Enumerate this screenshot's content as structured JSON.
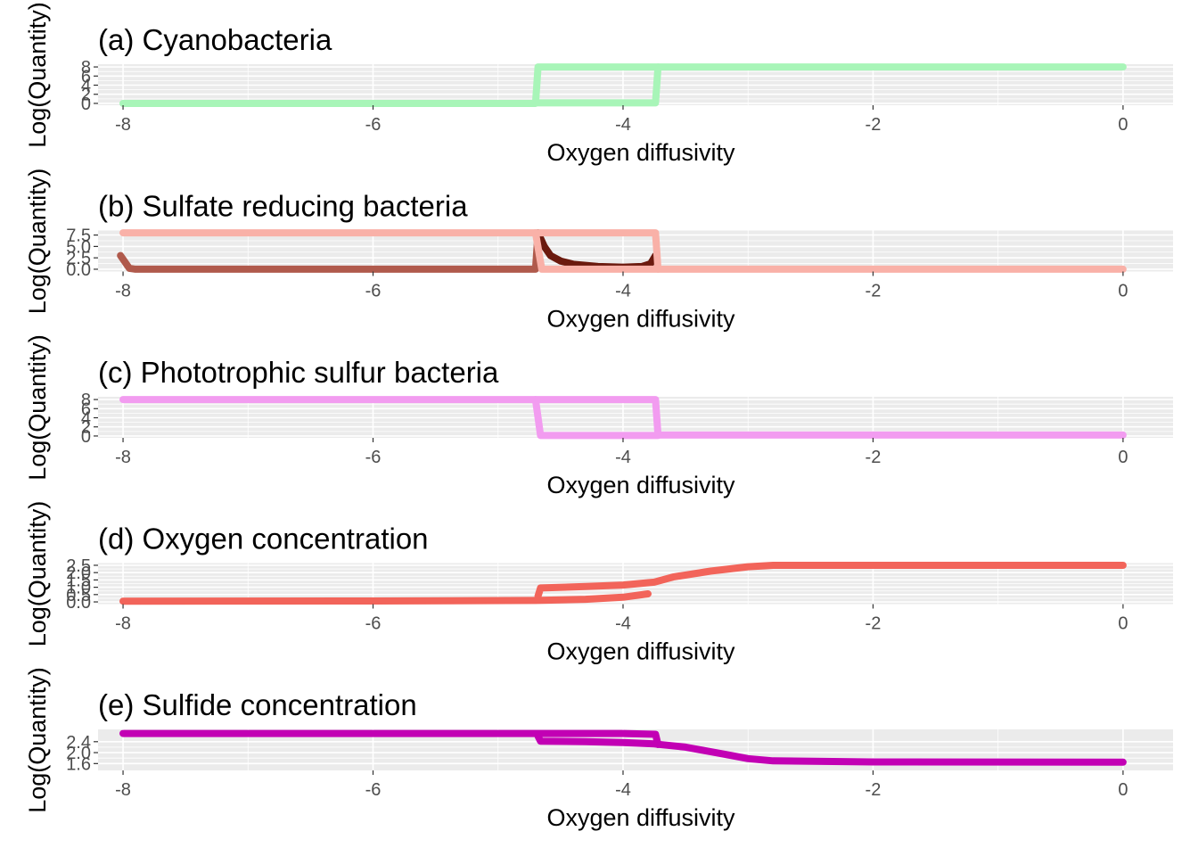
{
  "chart_data": [
    {
      "type": "line",
      "title": "(a) Cyanobacteria",
      "xlabel": "Oxygen diffusivity",
      "ylabel": "Log(Quantity)",
      "xlim": [
        -8.2,
        0.4
      ],
      "ylim": [
        -0.4,
        8.6
      ],
      "xticks": [
        -8,
        -6,
        -4,
        -2,
        0
      ],
      "xtick_labels": [
        "-8",
        "-6",
        "-4",
        "-2",
        "0"
      ],
      "yticks": [
        0,
        2,
        4,
        6,
        8
      ],
      "ytick_labels": [
        "0",
        "2",
        "4",
        "6",
        "8"
      ],
      "grid": true,
      "series": [
        {
          "color": "#a8f5b8",
          "x": [
            -8,
            -4.7,
            -4.68,
            -3.74,
            -3.72,
            0
          ],
          "y": [
            0,
            0,
            8,
            8,
            8,
            8
          ]
        },
        {
          "color": "#a8f5b8",
          "x": [
            -4.68,
            -3.74,
            -3.72
          ],
          "y": [
            0.1,
            0.1,
            8
          ]
        }
      ]
    },
    {
      "type": "line",
      "title": "(b) Sulfate reducing bacteria",
      "xlabel": "Oxygen diffusivity",
      "ylabel": "Log(Quantity)",
      "xlim": [
        -8.2,
        0.4
      ],
      "ylim": [
        -0.5,
        8.5
      ],
      "xticks": [
        -8,
        -6,
        -4,
        -2,
        0
      ],
      "xtick_labels": [
        "-8",
        "-6",
        "-4",
        "-2",
        "0"
      ],
      "yticks": [
        0,
        2.5,
        5,
        7.5
      ],
      "ytick_labels": [
        "0.0",
        "2.5",
        "5.0",
        "7.5"
      ],
      "grid": true,
      "series": [
        {
          "color": "#b05a4c",
          "x": [
            -8.02,
            -7.95,
            -7.9,
            -4.7,
            -4.68
          ],
          "y": [
            3,
            0.2,
            0,
            0,
            8
          ]
        },
        {
          "color": "#6b1a0e",
          "x": [
            -4.68,
            -4.63,
            -4.58,
            -4.5,
            -4.4,
            -4.2,
            -4.0,
            -3.85,
            -3.78,
            -3.74
          ],
          "y": [
            8,
            5,
            3,
            1.8,
            1.1,
            0.6,
            0.45,
            0.6,
            1.2,
            3
          ]
        },
        {
          "color": "#f9b1a8",
          "x": [
            -8,
            -4.7,
            -4.68,
            -3.74,
            -3.72,
            0
          ],
          "y": [
            8,
            8,
            8,
            8,
            0,
            0
          ]
        },
        {
          "color": "#f9b1a8",
          "x": [
            -4.7,
            -4.65,
            -3.72
          ],
          "y": [
            8,
            0,
            0
          ]
        }
      ]
    },
    {
      "type": "line",
      "title": "(c) Phototrophic sulfur bacteria",
      "xlabel": "Oxygen diffusivity",
      "ylabel": "Log(Quantity)",
      "xlim": [
        -8.2,
        0.4
      ],
      "ylim": [
        -0.4,
        8.6
      ],
      "xticks": [
        -8,
        -6,
        -4,
        -2,
        0
      ],
      "xtick_labels": [
        "-8",
        "-6",
        "-4",
        "-2",
        "0"
      ],
      "yticks": [
        0,
        2,
        4,
        6,
        8
      ],
      "ytick_labels": [
        "0",
        "2",
        "4",
        "6",
        "8"
      ],
      "grid": true,
      "series": [
        {
          "color": "#f29cf0",
          "x": [
            -8,
            -4.7,
            -4.68,
            -3.74,
            -3.72,
            0
          ],
          "y": [
            8,
            8,
            8,
            8,
            0.2,
            0.2
          ]
        },
        {
          "color": "#f29cf0",
          "x": [
            -4.7,
            -4.66,
            -3.72
          ],
          "y": [
            8,
            0.1,
            0.1
          ]
        }
      ]
    },
    {
      "type": "line",
      "title": "(d) Oxygen concentration",
      "xlabel": "Oxygen diffusivity",
      "ylabel": "Log(Quantity)",
      "xlim": [
        -8.2,
        0.4
      ],
      "ylim": [
        -0.15,
        2.65
      ],
      "xticks": [
        -8,
        -6,
        -4,
        -2,
        0
      ],
      "xtick_labels": [
        "-8",
        "-6",
        "-4",
        "-2",
        "0"
      ],
      "yticks": [
        0,
        0.5,
        1,
        1.5,
        2,
        2.5
      ],
      "ytick_labels": [
        "0.0",
        "0.5",
        "1.0",
        "1.5",
        "2.0",
        "2.5"
      ],
      "grid": true,
      "series": [
        {
          "color": "#f2645a",
          "x": [
            -8,
            -6,
            -4.7,
            -4.3,
            -4.0,
            -3.8
          ],
          "y": [
            0.05,
            0.06,
            0.1,
            0.18,
            0.32,
            0.55
          ]
        },
        {
          "color": "#f2645a",
          "x": [
            -4.68,
            -4.66,
            -4.3,
            -4.0,
            -3.75,
            -3.6,
            -3.3,
            -3.0,
            -2.8,
            -2.0,
            0
          ],
          "y": [
            0.4,
            0.95,
            1.05,
            1.15,
            1.35,
            1.7,
            2.1,
            2.4,
            2.5,
            2.5,
            2.5
          ]
        }
      ]
    },
    {
      "type": "line",
      "title": "(e) Sulfide concentration",
      "xlabel": "Oxygen diffusivity",
      "ylabel": "Log(Quantity)",
      "xlim": [
        -8.2,
        0.4
      ],
      "ylim": [
        1.35,
        2.85
      ],
      "xticks": [
        -8,
        -6,
        -4,
        -2,
        0
      ],
      "xtick_labels": [
        "-8",
        "-6",
        "-4",
        "-2",
        "0"
      ],
      "yticks": [
        1.6,
        2.0,
        2.4
      ],
      "ytick_labels": [
        "1.6",
        "2.0",
        "2.4"
      ],
      "grid": true,
      "series": [
        {
          "color": "#c200b4",
          "x": [
            -8,
            -4.7,
            -4.0,
            -3.74,
            -3.72
          ],
          "y": [
            2.7,
            2.7,
            2.7,
            2.67,
            2.3
          ]
        },
        {
          "color": "#c200b4",
          "x": [
            -4.68,
            -4.66,
            -4.3,
            -4.0,
            -3.75,
            -3.5,
            -3.2,
            -3.0,
            -2.8,
            -2.0,
            0
          ],
          "y": [
            2.6,
            2.42,
            2.4,
            2.37,
            2.32,
            2.2,
            1.95,
            1.78,
            1.7,
            1.66,
            1.65
          ]
        }
      ]
    }
  ]
}
